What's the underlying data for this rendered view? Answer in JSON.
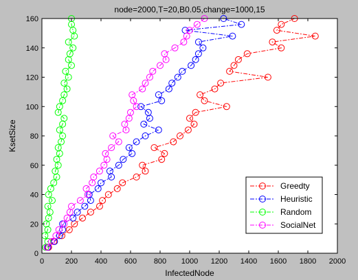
{
  "chart_data": {
    "type": "line",
    "title": "node=2000,T=20,B0.05,change=1000,15",
    "xlabel": "InfectedNode",
    "ylabel": "KsetSize",
    "xlim": [
      0,
      2000
    ],
    "ylim": [
      0,
      160
    ],
    "xticks": [
      "0",
      "200",
      "400",
      "600",
      "800",
      "1000",
      "1200",
      "1400",
      "1600",
      "1800",
      "2000"
    ],
    "yticks": [
      "0",
      "20",
      "40",
      "60",
      "80",
      "100",
      "120",
      "140",
      "160"
    ],
    "grid": false,
    "legend_position": "bottom-right",
    "series": [
      {
        "name": "Greedty",
        "color": "#ff0000",
        "points": [
          [
            45,
            4
          ],
          [
            80,
            8
          ],
          [
            135,
            12
          ],
          [
            185,
            16
          ],
          [
            220,
            20
          ],
          [
            275,
            24
          ],
          [
            330,
            28
          ],
          [
            390,
            32
          ],
          [
            410,
            36
          ],
          [
            450,
            40
          ],
          [
            510,
            44
          ],
          [
            545,
            48
          ],
          [
            640,
            52
          ],
          [
            700,
            56
          ],
          [
            680,
            60
          ],
          [
            810,
            64
          ],
          [
            830,
            68
          ],
          [
            760,
            72
          ],
          [
            890,
            76
          ],
          [
            935,
            80
          ],
          [
            990,
            84
          ],
          [
            1030,
            88
          ],
          [
            1000,
            92
          ],
          [
            1040,
            96
          ],
          [
            1250,
            100
          ],
          [
            1100,
            104
          ],
          [
            1070,
            108
          ],
          [
            1170,
            112
          ],
          [
            1210,
            116
          ],
          [
            1530,
            120
          ],
          [
            1270,
            124
          ],
          [
            1300,
            128
          ],
          [
            1330,
            132
          ],
          [
            1390,
            136
          ],
          [
            1620,
            140
          ],
          [
            1560,
            144
          ],
          [
            1850,
            148
          ],
          [
            1590,
            152
          ],
          [
            1620,
            156
          ],
          [
            1710,
            160
          ]
        ]
      },
      {
        "name": "Heuristic",
        "color": "#0000ff",
        "points": [
          [
            40,
            4
          ],
          [
            85,
            8
          ],
          [
            120,
            12
          ],
          [
            140,
            16
          ],
          [
            140,
            20
          ],
          [
            210,
            24
          ],
          [
            240,
            28
          ],
          [
            290,
            32
          ],
          [
            330,
            36
          ],
          [
            320,
            40
          ],
          [
            380,
            44
          ],
          [
            400,
            48
          ],
          [
            470,
            52
          ],
          [
            460,
            56
          ],
          [
            520,
            60
          ],
          [
            550,
            64
          ],
          [
            610,
            68
          ],
          [
            590,
            72
          ],
          [
            640,
            76
          ],
          [
            700,
            80
          ],
          [
            790,
            84
          ],
          [
            690,
            88
          ],
          [
            730,
            92
          ],
          [
            720,
            96
          ],
          [
            670,
            100
          ],
          [
            810,
            104
          ],
          [
            790,
            108
          ],
          [
            860,
            112
          ],
          [
            880,
            116
          ],
          [
            920,
            120
          ],
          [
            950,
            124
          ],
          [
            1010,
            128
          ],
          [
            1040,
            132
          ],
          [
            1060,
            136
          ],
          [
            1090,
            140
          ],
          [
            1060,
            144
          ],
          [
            1290,
            148
          ],
          [
            970,
            152
          ],
          [
            1350,
            156
          ],
          [
            1230,
            160
          ]
        ]
      },
      {
        "name": "Random",
        "color": "#00ff00",
        "points": [
          [
            25,
            4
          ],
          [
            40,
            8
          ],
          [
            20,
            12
          ],
          [
            40,
            16
          ],
          [
            30,
            20
          ],
          [
            45,
            24
          ],
          [
            55,
            28
          ],
          [
            40,
            32
          ],
          [
            70,
            36
          ],
          [
            45,
            40
          ],
          [
            60,
            44
          ],
          [
            80,
            48
          ],
          [
            100,
            52
          ],
          [
            90,
            56
          ],
          [
            110,
            60
          ],
          [
            100,
            64
          ],
          [
            120,
            68
          ],
          [
            110,
            72
          ],
          [
            130,
            76
          ],
          [
            140,
            80
          ],
          [
            120,
            84
          ],
          [
            140,
            88
          ],
          [
            150,
            92
          ],
          [
            110,
            96
          ],
          [
            120,
            100
          ],
          [
            140,
            104
          ],
          [
            150,
            108
          ],
          [
            170,
            112
          ],
          [
            150,
            116
          ],
          [
            180,
            120
          ],
          [
            160,
            124
          ],
          [
            200,
            128
          ],
          [
            180,
            132
          ],
          [
            190,
            136
          ],
          [
            210,
            140
          ],
          [
            180,
            144
          ],
          [
            220,
            148
          ],
          [
            210,
            152
          ],
          [
            200,
            156
          ],
          [
            200,
            160
          ]
        ]
      },
      {
        "name": "SocialNet",
        "color": "#ff00ff",
        "points": [
          [
            35,
            4
          ],
          [
            65,
            8
          ],
          [
            95,
            12
          ],
          [
            115,
            16
          ],
          [
            150,
            20
          ],
          [
            170,
            24
          ],
          [
            190,
            28
          ],
          [
            200,
            32
          ],
          [
            260,
            36
          ],
          [
            310,
            40
          ],
          [
            300,
            44
          ],
          [
            340,
            48
          ],
          [
            350,
            52
          ],
          [
            390,
            56
          ],
          [
            420,
            60
          ],
          [
            440,
            64
          ],
          [
            430,
            68
          ],
          [
            470,
            72
          ],
          [
            520,
            76
          ],
          [
            480,
            80
          ],
          [
            570,
            84
          ],
          [
            560,
            88
          ],
          [
            590,
            92
          ],
          [
            600,
            96
          ],
          [
            640,
            100
          ],
          [
            620,
            104
          ],
          [
            610,
            108
          ],
          [
            680,
            112
          ],
          [
            700,
            116
          ],
          [
            730,
            120
          ],
          [
            750,
            124
          ],
          [
            800,
            128
          ],
          [
            840,
            132
          ],
          [
            830,
            136
          ],
          [
            900,
            140
          ],
          [
            960,
            144
          ],
          [
            980,
            148
          ],
          [
            1000,
            152
          ],
          [
            1050,
            156
          ],
          [
            1100,
            160
          ]
        ]
      }
    ]
  }
}
